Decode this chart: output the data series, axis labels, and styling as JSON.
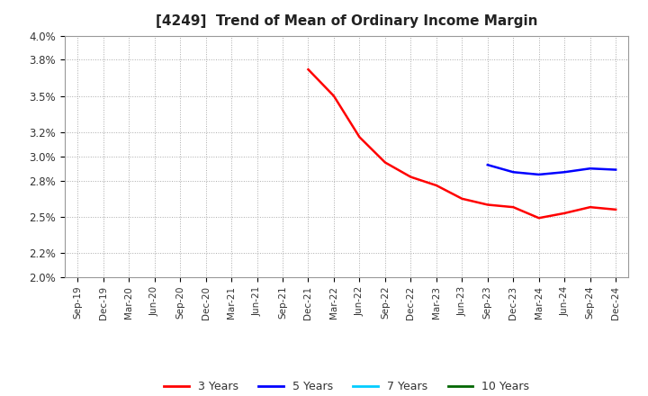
{
  "title": "[4249]  Trend of Mean of Ordinary Income Margin",
  "title_fontsize": 11,
  "background_color": "#ffffff",
  "plot_bg_color": "#ffffff",
  "grid_color": "#aaaaaa",
  "xtick_labels": [
    "Sep-19",
    "Dec-19",
    "Mar-20",
    "Jun-20",
    "Sep-20",
    "Dec-20",
    "Mar-21",
    "Jun-21",
    "Sep-21",
    "Dec-21",
    "Mar-22",
    "Jun-22",
    "Sep-22",
    "Dec-22",
    "Mar-23",
    "Jun-23",
    "Sep-23",
    "Dec-23",
    "Mar-24",
    "Jun-24",
    "Sep-24",
    "Dec-24"
  ],
  "ytick_vals": [
    0.02,
    0.022,
    0.025,
    0.028,
    0.03,
    0.032,
    0.035,
    0.038,
    0.04
  ],
  "ytick_labels": [
    "2.0%",
    "2.2%",
    "2.5%",
    "2.8%",
    "3.0%",
    "3.2%",
    "3.5%",
    "3.8%",
    "4.0%"
  ],
  "ylim": [
    0.02,
    0.04
  ],
  "series_3y_color": "#ff0000",
  "series_3y_label": "3 Years",
  "series_3y_x": [
    9,
    10,
    11,
    12,
    13,
    14,
    15,
    16,
    17,
    18,
    19,
    20,
    21
  ],
  "series_3y_y": [
    0.0372,
    0.035,
    0.0316,
    0.0295,
    0.0283,
    0.0276,
    0.0265,
    0.026,
    0.0258,
    0.0249,
    0.0253,
    0.0258,
    0.0256
  ],
  "series_5y_color": "#0000ff",
  "series_5y_label": "5 Years",
  "series_5y_x": [
    16,
    17,
    18,
    19,
    20,
    21
  ],
  "series_5y_y": [
    0.0293,
    0.0287,
    0.0285,
    0.0287,
    0.029,
    0.0289
  ],
  "series_7y_color": "#00ccff",
  "series_7y_label": "7 Years",
  "series_10y_color": "#006600",
  "series_10y_label": "10 Years"
}
